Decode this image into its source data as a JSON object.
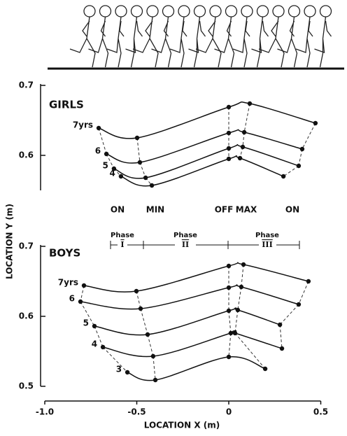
{
  "chart_data": [
    {
      "type": "line",
      "title": "GIRLS",
      "ylabel": "LOCATION Y (m)",
      "xlim": [
        -1,
        0.5
      ],
      "ylim": [
        0.55,
        0.7
      ],
      "yticks": [
        0.6,
        0.7
      ],
      "color": "#111",
      "series": [
        {
          "name": "7yrs",
          "x": [
            -0.707,
            -0.498,
            0,
            0.114,
            0.471
          ],
          "values": [
            0.639,
            0.625,
            0.669,
            0.674,
            0.646
          ]
        },
        {
          "name": "6",
          "x": [
            -0.665,
            -0.483,
            0,
            0.084,
            0.399
          ],
          "values": [
            0.602,
            0.59,
            0.632,
            0.633,
            0.609
          ]
        },
        {
          "name": "5",
          "x": [
            -0.624,
            -0.452,
            0,
            0.076,
            0.38
          ],
          "values": [
            0.581,
            0.568,
            0.61,
            0.612,
            0.585
          ]
        },
        {
          "name": "4",
          "x": [
            -0.586,
            -0.418,
            0,
            0.061,
            0.297
          ],
          "values": [
            0.57,
            0.557,
            0.595,
            0.596,
            0.57
          ]
        }
      ]
    },
    {
      "type": "line",
      "title": "BOYS",
      "xlabel": "LOCATION X (m)",
      "xlim": [
        -1,
        0.5
      ],
      "xticks": [
        {
          "value": -1,
          "label": "-1.0"
        },
        -0.5,
        0,
        0.5
      ],
      "ylim": [
        0.5,
        0.7
      ],
      "yticks": [
        0.5,
        0.6,
        0.7
      ],
      "color": "#111",
      "series": [
        {
          "name": "7yrs",
          "x": [
            -0.787,
            -0.502,
            0,
            0.08,
            0.433
          ],
          "values": [
            0.644,
            0.636,
            0.672,
            0.674,
            0.65
          ]
        },
        {
          "name": "6",
          "x": [
            -0.806,
            -0.479,
            0,
            0.068,
            0.38
          ],
          "values": [
            0.621,
            0.611,
            0.641,
            0.642,
            0.617
          ]
        },
        {
          "name": "5",
          "x": [
            -0.73,
            -0.441,
            0,
            0.049,
            0.278
          ],
          "values": [
            0.586,
            0.574,
            0.608,
            0.609,
            0.588
          ]
        },
        {
          "name": "4",
          "x": [
            -0.684,
            -0.411,
            0.011,
            0.034,
            0.289
          ],
          "values": [
            0.556,
            0.543,
            0.576,
            0.576,
            0.554
          ]
        },
        {
          "name": "3",
          "x": [
            -0.551,
            -0.399,
            0,
            0.198
          ],
          "values": [
            0.52,
            0.509,
            0.542,
            0.525
          ]
        }
      ]
    }
  ],
  "event_labels": [
    "ON",
    "MIN",
    "OFF",
    "MAX",
    "ON"
  ],
  "phase_labels": [
    {
      "word": "Phase",
      "numeral": "I"
    },
    {
      "word": "Phase",
      "numeral": "II"
    },
    {
      "word": "Phase",
      "numeral": "III"
    }
  ]
}
